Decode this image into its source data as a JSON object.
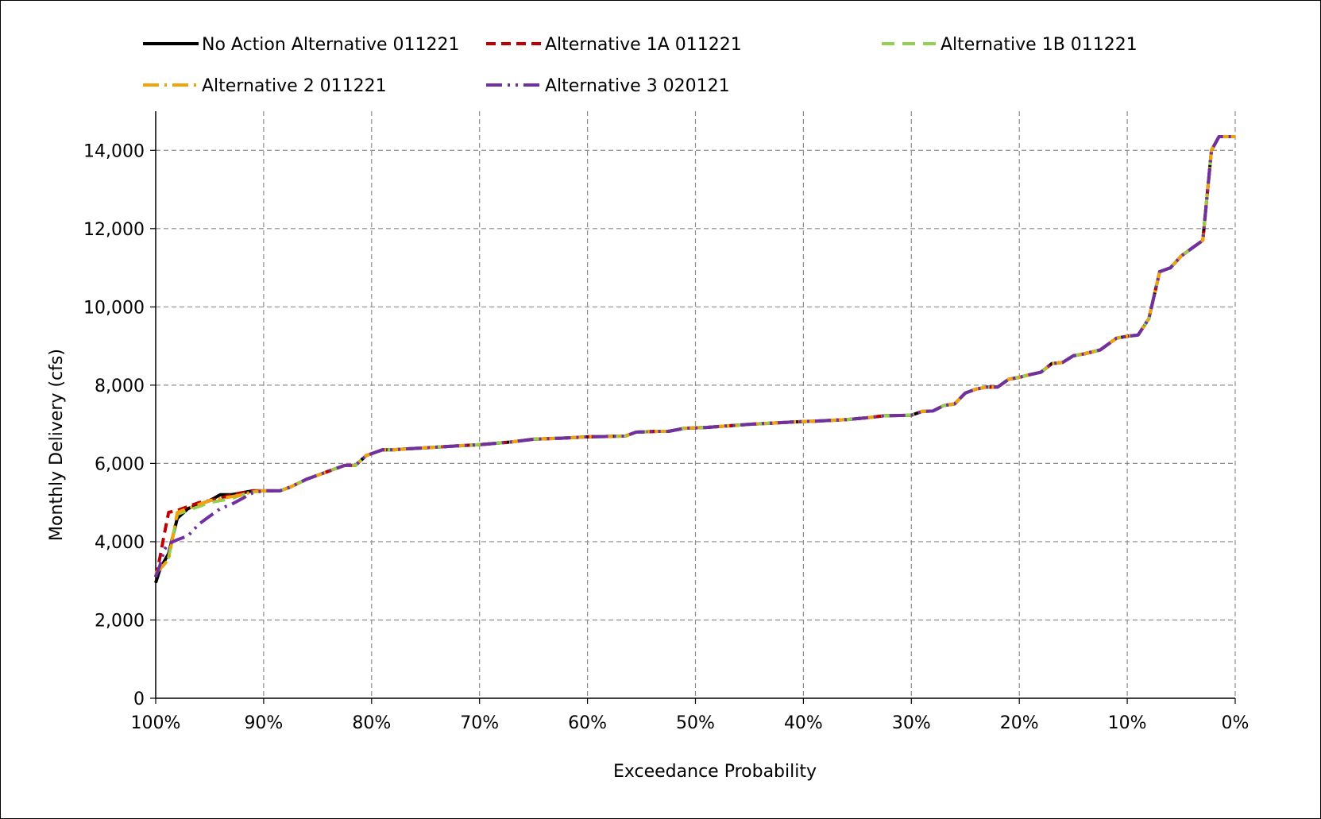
{
  "chart_data": {
    "type": "line",
    "title": "",
    "xlabel": "Exceedance Probability",
    "ylabel": "Monthly Delivery (cfs)",
    "x_reversed": true,
    "xlim": [
      0,
      100
    ],
    "ylim": [
      0,
      15000
    ],
    "x_ticks": [
      100,
      90,
      80,
      70,
      60,
      50,
      40,
      30,
      20,
      10,
      0
    ],
    "x_tick_labels": [
      "100%",
      "90%",
      "80%",
      "70%",
      "60%",
      "50%",
      "40%",
      "30%",
      "20%",
      "10%",
      "0%"
    ],
    "y_ticks": [
      0,
      2000,
      4000,
      6000,
      8000,
      10000,
      12000,
      14000
    ],
    "y_tick_labels": [
      "0",
      "2,000",
      "4,000",
      "6,000",
      "8,000",
      "10,000",
      "12,000",
      "14,000"
    ],
    "grid": true,
    "legend_position": "top",
    "common_curve": {
      "x": [
        90,
        88.5,
        87.5,
        86,
        85,
        83.5,
        82.5,
        81.5,
        80.5,
        80,
        79,
        78,
        77,
        75,
        72,
        70,
        67,
        65,
        62,
        60,
        58,
        56.5,
        55.5,
        53.5,
        52.5,
        51,
        49,
        47,
        45,
        43,
        41,
        39,
        36,
        34,
        32.5,
        30,
        29,
        28,
        27,
        26,
        25,
        24,
        23,
        22,
        21,
        20,
        19,
        18,
        17,
        16,
        15,
        14,
        12.5,
        11,
        10,
        9,
        8,
        7,
        6,
        5,
        4,
        3,
        2.2,
        1.5,
        1.2,
        0
      ],
      "y": [
        5300,
        5300,
        5400,
        5600,
        5700,
        5850,
        5950,
        5950,
        6200,
        6250,
        6350,
        6350,
        6370,
        6400,
        6450,
        6480,
        6550,
        6620,
        6650,
        6680,
        6690,
        6700,
        6800,
        6820,
        6820,
        6900,
        6920,
        6960,
        7000,
        7030,
        7060,
        7080,
        7120,
        7170,
        7220,
        7230,
        7330,
        7340,
        7480,
        7520,
        7800,
        7900,
        7950,
        7950,
        8150,
        8200,
        8270,
        8330,
        8550,
        8580,
        8750,
        8800,
        8900,
        9200,
        9250,
        9280,
        9700,
        10900,
        11000,
        11300,
        11500,
        11700,
        14000,
        14350,
        14350,
        14350
      ]
    },
    "series": [
      {
        "name": "No Action Alternative 011221",
        "color": "#000000",
        "dash": "solid",
        "low_end": {
          "x": [
            100,
            99.6,
            98.8,
            98,
            97,
            96,
            95,
            94,
            93,
            92,
            91
          ],
          "y": [
            2950,
            3300,
            3700,
            4600,
            4850,
            4950,
            5050,
            5200,
            5200,
            5250,
            5300
          ]
        }
      },
      {
        "name": "Alternative 1A 011221",
        "color": "#c00000",
        "dash": "dash",
        "low_end": {
          "x": [
            100,
            99.6,
            99.2,
            98.8,
            98,
            97,
            96,
            95,
            94,
            93,
            92,
            91
          ],
          "y": [
            3100,
            3600,
            4200,
            4750,
            4800,
            4900,
            5000,
            5050,
            5100,
            5200,
            5250,
            5300
          ]
        }
      },
      {
        "name": "Alternative 1B 011221",
        "color": "#92d050",
        "dash": "longdash",
        "low_end": {
          "x": [
            100,
            99.6,
            98.8,
            98,
            97,
            96,
            95,
            94,
            93,
            92,
            91
          ],
          "y": [
            3150,
            3350,
            3600,
            4700,
            4800,
            4900,
            5000,
            5050,
            5100,
            5200,
            5270
          ]
        }
      },
      {
        "name": "Alternative 2 011221",
        "color": "#f0a30a",
        "dash": "longdashdot",
        "low_end": {
          "x": [
            100,
            99.6,
            98.8,
            98,
            97,
            96,
            95,
            94,
            93,
            92,
            91
          ],
          "y": [
            3200,
            3300,
            3550,
            4750,
            4850,
            4950,
            5050,
            5100,
            5150,
            5200,
            5280
          ]
        }
      },
      {
        "name": "Alternative 3 020121",
        "color": "#7030a0",
        "dash": "longdashdotdot",
        "low_end": {
          "x": [
            100,
            99.6,
            99.2,
            98.8,
            98,
            97,
            96,
            95,
            94,
            93,
            92,
            91
          ],
          "y": [
            3100,
            3400,
            3800,
            3950,
            4050,
            4150,
            4450,
            4650,
            4850,
            4950,
            5100,
            5250
          ]
        }
      }
    ]
  }
}
